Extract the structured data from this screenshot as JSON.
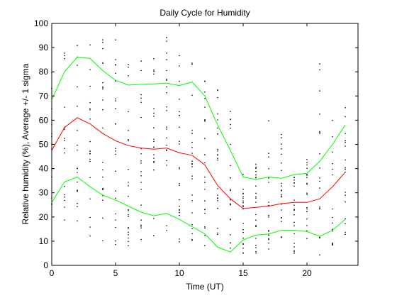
{
  "chart_data": {
    "type": "line",
    "title": "Daily Cycle for Humidity",
    "xlabel": "Time (UT)",
    "ylabel": "Relative humidity (%), Average +/- 1 sigma",
    "xlim": [
      0,
      24
    ],
    "ylim": [
      0,
      100
    ],
    "xticks": [
      0,
      5,
      10,
      15,
      20
    ],
    "yticks": [
      0,
      10,
      20,
      30,
      40,
      50,
      60,
      70,
      80,
      90,
      100
    ],
    "grid": false,
    "x": [
      0,
      1,
      2,
      3,
      4,
      5,
      6,
      7,
      8,
      9,
      10,
      11,
      12,
      13,
      14,
      15,
      16,
      17,
      18,
      19,
      20,
      21,
      22,
      23
    ],
    "series": [
      {
        "role": "average",
        "color": "#ff0000",
        "values": [
          47.5,
          57,
          61,
          58.5,
          54.5,
          51.5,
          49.5,
          48.5,
          48,
          48.5,
          46.5,
          45.5,
          41.5,
          33,
          27.5,
          23.5,
          24,
          24.5,
          25.5,
          26,
          26,
          27.5,
          32.5,
          38.5
        ]
      },
      {
        "role": "average_plus_sigma",
        "color": "#00ff00",
        "values": [
          68.5,
          80,
          86,
          85.5,
          80.5,
          76.5,
          74.5,
          74.8,
          75,
          75.3,
          74.3,
          75.8,
          70,
          58,
          47.5,
          36.5,
          35.5,
          36.5,
          36,
          37.5,
          38,
          43,
          50,
          58
        ]
      },
      {
        "role": "average_minus_sigma",
        "color": "#00ff00",
        "values": [
          26,
          34.5,
          36.5,
          32.5,
          29,
          27,
          24.5,
          22,
          20.5,
          21.5,
          19,
          16,
          13,
          7.5,
          5.5,
          10.5,
          12.5,
          13,
          14.5,
          14.5,
          14,
          12,
          14.5,
          19
        ]
      }
    ],
    "scatter": {
      "color": "#000000",
      "note_style": "dots",
      "columns": [
        {
          "x": 0,
          "min": 20,
          "max": 88,
          "n": 14
        },
        {
          "x": 1,
          "min": 15,
          "max": 90,
          "n": 16
        },
        {
          "x": 2,
          "min": 12,
          "max": 92,
          "n": 18
        },
        {
          "x": 3,
          "min": 8,
          "max": 95,
          "n": 20
        },
        {
          "x": 4,
          "min": 8,
          "max": 96,
          "n": 22
        },
        {
          "x": 5,
          "min": 8,
          "max": 94,
          "n": 22
        },
        {
          "x": 6,
          "min": 8,
          "max": 97,
          "n": 22
        },
        {
          "x": 7,
          "min": 10,
          "max": 90,
          "n": 20
        },
        {
          "x": 8,
          "min": 10,
          "max": 88,
          "n": 20
        },
        {
          "x": 9,
          "min": 10,
          "max": 95,
          "n": 22
        },
        {
          "x": 10,
          "min": 8,
          "max": 90,
          "n": 22
        },
        {
          "x": 11,
          "min": 8,
          "max": 92,
          "n": 22
        },
        {
          "x": 12,
          "min": 6,
          "max": 80,
          "n": 22
        },
        {
          "x": 13,
          "min": 4,
          "max": 75,
          "n": 24
        },
        {
          "x": 14,
          "min": 4,
          "max": 65,
          "n": 22
        },
        {
          "x": 15,
          "min": 5,
          "max": 45,
          "n": 22
        },
        {
          "x": 16,
          "min": 5,
          "max": 42,
          "n": 22
        },
        {
          "x": 17,
          "min": 6,
          "max": 63,
          "n": 22
        },
        {
          "x": 18,
          "min": 6,
          "max": 60,
          "n": 22
        },
        {
          "x": 19,
          "min": 5,
          "max": 45,
          "n": 20
        },
        {
          "x": 20,
          "min": 8,
          "max": 45,
          "n": 20
        },
        {
          "x": 21,
          "min": 4,
          "max": 85,
          "n": 20
        },
        {
          "x": 22,
          "min": 8,
          "max": 60,
          "n": 16
        },
        {
          "x": 23,
          "min": 12,
          "max": 68,
          "n": 18
        }
      ]
    }
  }
}
